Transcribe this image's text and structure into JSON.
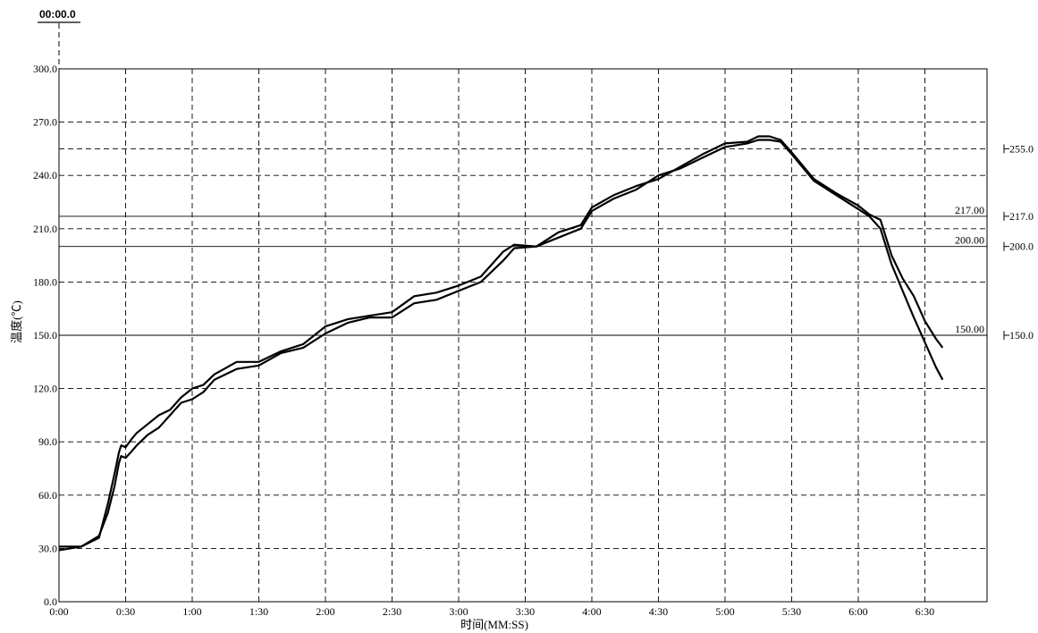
{
  "chart_data": {
    "type": "line",
    "cursor_label": "00:00.0",
    "xlabel": "时间(MM:SS)",
    "ylabel": "温度(℃)",
    "x_range_seconds": [
      0,
      418
    ],
    "ylim": [
      0,
      300
    ],
    "grid": true,
    "x_ticks": [
      "0:00",
      "0:30",
      "1:00",
      "1:30",
      "2:00",
      "2:30",
      "3:00",
      "3:30",
      "4:00",
      "4:30",
      "5:00",
      "5:30",
      "6:00",
      "6:30"
    ],
    "y_ticks": [
      "0.0",
      "30.0",
      "60.0",
      "90.0",
      "120.0",
      "150.0",
      "180.0",
      "210.0",
      "240.0",
      "270.0",
      "300.0"
    ],
    "y_grid_values": [
      30,
      60,
      90,
      120,
      180,
      210,
      240,
      255,
      270
    ],
    "x_grid_ticks": [
      "0:30",
      "1:00",
      "1:30",
      "2:00",
      "2:30",
      "3:00",
      "3:30",
      "4:00",
      "4:30",
      "5:00",
      "5:30",
      "6:00",
      "6:30"
    ],
    "reference_lines": [
      {
        "value": 217,
        "inner_label": "217.00",
        "outer_label": "217.0"
      },
      {
        "value": 200,
        "inner_label": "200.00",
        "outer_label": "200.0"
      },
      {
        "value": 150,
        "inner_label": "150.00",
        "outer_label": "150.0"
      }
    ],
    "right_markers": [
      {
        "value": 255,
        "label": "255.0"
      }
    ],
    "series": [
      {
        "x": [
          "0:00",
          "0:10",
          "0:18",
          "0:22",
          "0:25",
          "0:27",
          "0:28",
          "0:30",
          "0:33",
          "0:35",
          "0:40",
          "0:45",
          "0:50",
          "0:55",
          "1:00",
          "1:05",
          "1:10",
          "1:20",
          "1:30",
          "1:40",
          "1:50",
          "2:00",
          "2:10",
          "2:20",
          "2:30",
          "2:40",
          "2:50",
          "3:00",
          "3:10",
          "3:20",
          "3:25",
          "3:35",
          "3:45",
          "3:55",
          "4:00",
          "4:10",
          "4:20",
          "4:30",
          "4:40",
          "4:50",
          "5:00",
          "5:10",
          "5:15",
          "5:20",
          "5:25",
          "5:30",
          "5:40",
          "5:50",
          "6:00",
          "6:05",
          "6:10",
          "6:15",
          "6:20",
          "6:25",
          "6:30",
          "6:35",
          "6:38"
        ],
        "y": [
          29,
          31,
          37,
          50,
          65,
          78,
          82,
          81,
          85,
          88,
          94,
          98,
          105,
          112,
          114,
          118,
          125,
          131,
          133,
          140,
          143,
          151,
          157,
          160,
          160,
          168,
          170,
          175,
          180,
          192,
          199,
          200,
          205,
          210,
          220,
          227,
          232,
          240,
          244,
          250,
          256,
          258,
          260,
          260,
          259,
          252,
          237,
          229,
          221,
          217,
          210,
          190,
          175,
          160,
          146,
          132,
          125
        ]
      },
      {
        "x": [
          "0:00",
          "0:10",
          "0:18",
          "0:22",
          "0:25",
          "0:27",
          "0:28",
          "0:30",
          "0:33",
          "0:35",
          "0:40",
          "0:45",
          "0:50",
          "0:55",
          "1:00",
          "1:05",
          "1:10",
          "1:20",
          "1:30",
          "1:40",
          "1:50",
          "2:00",
          "2:10",
          "2:20",
          "2:30",
          "2:40",
          "2:50",
          "3:00",
          "3:10",
          "3:20",
          "3:25",
          "3:35",
          "3:45",
          "3:55",
          "4:00",
          "4:10",
          "4:20",
          "4:30",
          "4:40",
          "4:50",
          "5:00",
          "5:10",
          "5:15",
          "5:20",
          "5:25",
          "5:30",
          "5:40",
          "5:50",
          "6:00",
          "6:05",
          "6:10",
          "6:15",
          "6:20",
          "6:25",
          "6:30",
          "6:35",
          "6:38"
        ],
        "y": [
          31,
          31,
          36,
          55,
          72,
          84,
          88,
          87,
          92,
          95,
          100,
          105,
          108,
          115,
          120,
          122,
          128,
          135,
          135,
          141,
          145,
          155,
          159,
          161,
          163,
          172,
          174,
          178,
          183,
          197,
          201,
          200,
          208,
          212,
          222,
          229,
          234,
          238,
          245,
          252,
          258,
          259,
          262,
          262,
          260,
          253,
          238,
          230,
          223,
          218,
          215,
          195,
          182,
          172,
          158,
          148,
          143
        ]
      }
    ]
  }
}
